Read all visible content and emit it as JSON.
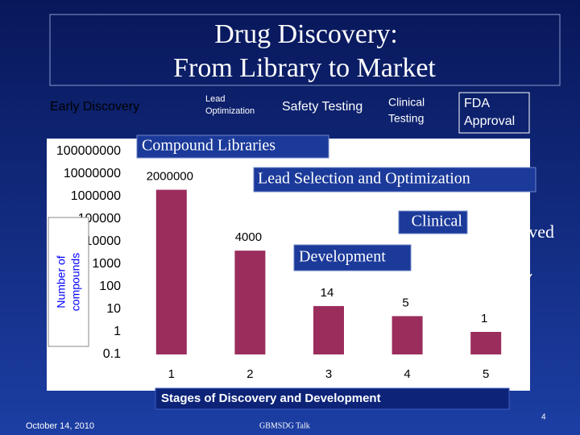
{
  "title_lines": [
    "Drug Discovery:",
    "From Library to Market"
  ],
  "stages": [
    [
      "Early Discovery"
    ],
    [
      "Lead",
      "Optimization"
    ],
    [
      "Safety Testing"
    ],
    [
      "Clinical",
      "Testing"
    ],
    [
      "FDA",
      "Approval"
    ]
  ],
  "annotations": [
    "Compound Libraries",
    "Lead Selection and Optimization",
    "Clinical",
    "Development",
    [
      "Approved",
      "Drug"
    ]
  ],
  "chart_data": {
    "type": "bar",
    "log_scale": true,
    "color": "#9b2d5c",
    "categories": [
      "1",
      "2",
      "3",
      "4",
      "5"
    ],
    "values": [
      2000000,
      4000,
      14,
      5,
      1
    ],
    "ylim": [
      0.1,
      100000000
    ],
    "yticks": [
      0.1,
      1,
      10,
      100,
      1000,
      10000,
      100000,
      1000000,
      10000000,
      100000000
    ],
    "ylabel": [
      "Number of",
      "compounds"
    ],
    "xlabel": "Stages of Discovery and Development"
  },
  "footer": {
    "date": "October 14, 2010",
    "talk": "GBMSDG Talk",
    "page": "4"
  }
}
